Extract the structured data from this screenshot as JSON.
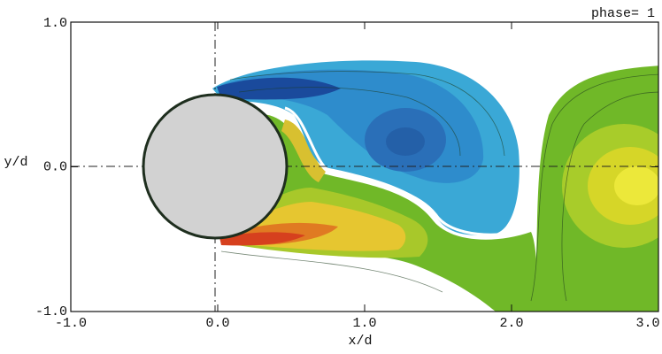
{
  "chart_data": {
    "type": "contour",
    "title": "phase= 1",
    "xlabel": "x/d",
    "ylabel": "y/d",
    "xlim": [
      -1,
      3
    ],
    "ylim": [
      -1,
      1
    ],
    "xticks": [
      {
        "value": -1,
        "label": "-1.0"
      },
      {
        "value": 0,
        "label": "0.0"
      },
      {
        "value": 1,
        "label": "1.0"
      },
      {
        "value": 2,
        "label": "2.0"
      },
      {
        "value": 3,
        "label": "3.0"
      }
    ],
    "yticks": [
      {
        "value": -1,
        "label": "-1.0"
      },
      {
        "value": 0,
        "label": "0.0"
      },
      {
        "value": 1,
        "label": "1.0"
      }
    ]
  }
}
